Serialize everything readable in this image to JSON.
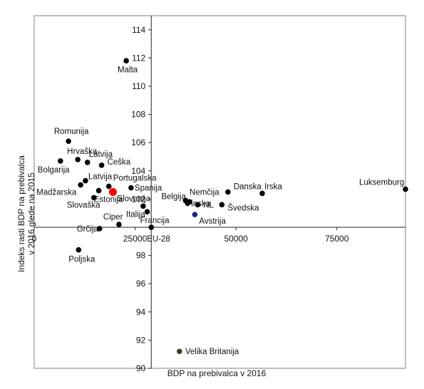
{
  "chart_data": {
    "type": "scatter",
    "xlabel": "BDP na prebivalca v 2016",
    "ylabel": "Indeks rasti BDP na prebivalca v 2016 glede na 2015",
    "ylabel_lines": [
      "Indeks rasti BDP na prebivalca",
      "v 2016 glede na 2015"
    ],
    "xlim": [
      0,
      92000
    ],
    "ylim": [
      90,
      115
    ],
    "x_cross_at": 100,
    "y_cross_at": 29000,
    "xticks": [
      0,
      25000,
      50000,
      75000
    ],
    "xtick_labels": [
      "0",
      "25000",
      "50000",
      "75000"
    ],
    "yticks": [
      90,
      92,
      94,
      96,
      98,
      102,
      104,
      106,
      108,
      110,
      112,
      114
    ],
    "ytick_labels": [
      "90",
      "92",
      "94",
      "96",
      "98",
      "102",
      "104",
      "106",
      "108",
      "110",
      "112",
      "114"
    ],
    "grid": false,
    "legend": "none",
    "colors": {
      "default": "#000000",
      "highlight": "#ff0000",
      "eu": "#1a237e",
      "uk": "#3d3d1f",
      "eu_label": "#5b8fd4"
    },
    "points": [
      {
        "label": "Malta",
        "x": 22800,
        "y": 111.8,
        "color": "default"
      },
      {
        "label": "Romunija",
        "x": 8500,
        "y": 106.1,
        "color": "default"
      },
      {
        "label": "Hrvaška",
        "x": 10800,
        "y": 104.8,
        "color": "default"
      },
      {
        "label": "Latvija",
        "x": 13200,
        "y": 104.6,
        "color": "default"
      },
      {
        "label": "Češka",
        "x": 16700,
        "y": 104.4,
        "color": "default"
      },
      {
        "label": "Bolgarija",
        "x": 6500,
        "y": 104.7,
        "color": "default"
      },
      {
        "label": "Madžarska",
        "x": 11500,
        "y": 103.0,
        "color": "default"
      },
      {
        "label": "Latvija",
        "x": 12700,
        "y": 103.3,
        "color": "default"
      },
      {
        "label": "Portugalska",
        "x": 18500,
        "y": 102.9,
        "color": "default"
      },
      {
        "label": "Spanija",
        "x": 24000,
        "y": 102.8,
        "color": "default"
      },
      {
        "label": "Slovenija",
        "x": 19500,
        "y": 102.5,
        "color": "highlight"
      },
      {
        "label": "Estonija",
        "x": 16000,
        "y": 102.6,
        "color": "default"
      },
      {
        "label": "Slovaška",
        "x": 14800,
        "y": 102.1,
        "color": "default"
      },
      {
        "label": "Italija",
        "x": 27000,
        "y": 101.5,
        "color": "default"
      },
      {
        "label": "Ciper",
        "x": 21000,
        "y": 100.2,
        "color": "default"
      },
      {
        "label": "Grčija",
        "x": 16200,
        "y": 99.9,
        "color": "default"
      },
      {
        "label": "Francija",
        "x": 28000,
        "y": 101.1,
        "color": "default"
      },
      {
        "label": "EU-28",
        "x": 29000,
        "y": 100.0,
        "color": "default"
      },
      {
        "label": "Finska",
        "x": 38000,
        "y": 101.7,
        "color": "default"
      },
      {
        "label": "Belgija",
        "x": 37500,
        "y": 101.9,
        "color": "default"
      },
      {
        "label": "Nemčija",
        "x": 38500,
        "y": 101.8,
        "color": "default"
      },
      {
        "label": "NL",
        "x": 40500,
        "y": 101.6,
        "color": "default"
      },
      {
        "label": "Avstrija",
        "x": 39800,
        "y": 100.9,
        "color": "eu"
      },
      {
        "label": "Danska",
        "x": 48000,
        "y": 102.5,
        "color": "default"
      },
      {
        "label": "Švedska",
        "x": 46500,
        "y": 101.6,
        "color": "default"
      },
      {
        "label": "Irska",
        "x": 56500,
        "y": 102.4,
        "color": "default"
      },
      {
        "label": "Luksemburg",
        "x": 92000,
        "y": 102.7,
        "color": "default"
      },
      {
        "label": "Poljska",
        "x": 11000,
        "y": 98.4,
        "color": "default"
      },
      {
        "label": "Velika Britanija",
        "x": 36000,
        "y": 91.2,
        "color": "uk"
      }
    ]
  }
}
